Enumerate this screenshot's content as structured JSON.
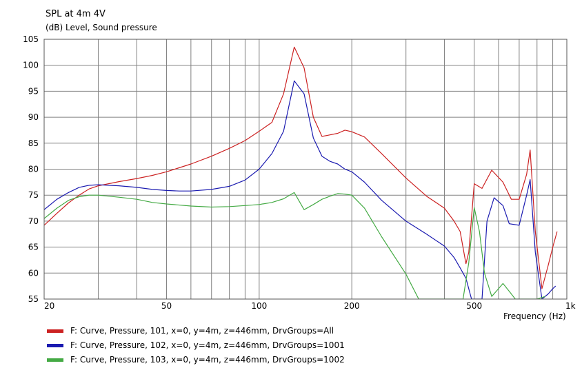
{
  "chart_data": {
    "type": "line",
    "title": "SPL at 4m 4V",
    "ylabel": "(dB)  Level, Sound pressure",
    "xlabel_text": "Frequency",
    "xlabel_unit": "(Hz)",
    "xscale": "log",
    "xlim": [
      20,
      1000
    ],
    "ylim": [
      55,
      105
    ],
    "grid": true,
    "legend_position": "bottom",
    "x_ticks": [
      {
        "value": 20,
        "label": "20"
      },
      {
        "value": 50,
        "label": "50"
      },
      {
        "value": 100,
        "label": "100"
      },
      {
        "value": 200,
        "label": "200"
      },
      {
        "value": 500,
        "label": "500"
      },
      {
        "value": 1000,
        "label": "1k"
      }
    ],
    "y_ticks": [
      55,
      60,
      65,
      70,
      75,
      80,
      85,
      90,
      95,
      100,
      105
    ],
    "series": [
      {
        "name": "F: Curve, Pressure, 101, x=0, y=4m, z=446mm, DrvGroups=All",
        "color": "#cc2222",
        "points": [
          [
            20,
            69.2
          ],
          [
            22,
            71.5
          ],
          [
            24,
            73.5
          ],
          [
            26,
            75
          ],
          [
            28,
            76.2
          ],
          [
            30,
            76.8
          ],
          [
            35,
            77.6
          ],
          [
            40,
            78.2
          ],
          [
            45,
            78.8
          ],
          [
            50,
            79.5
          ],
          [
            60,
            81
          ],
          [
            70,
            82.5
          ],
          [
            80,
            84
          ],
          [
            90,
            85.5
          ],
          [
            100,
            87.3
          ],
          [
            110,
            89
          ],
          [
            120,
            94.5
          ],
          [
            130,
            103.5
          ],
          [
            140,
            99.5
          ],
          [
            150,
            90
          ],
          [
            160,
            86.3
          ],
          [
            170,
            86.6
          ],
          [
            180,
            86.9
          ],
          [
            190,
            87.5
          ],
          [
            200,
            87.2
          ],
          [
            220,
            86.2
          ],
          [
            250,
            83
          ],
          [
            300,
            78.3
          ],
          [
            350,
            74.8
          ],
          [
            400,
            72.5
          ],
          [
            430,
            70
          ],
          [
            450,
            68
          ],
          [
            470,
            61.8
          ],
          [
            480,
            64
          ],
          [
            500,
            77.2
          ],
          [
            530,
            76.3
          ],
          [
            570,
            79.8
          ],
          [
            620,
            77.5
          ],
          [
            660,
            74.2
          ],
          [
            700,
            74.2
          ],
          [
            740,
            79
          ],
          [
            760,
            83.7
          ],
          [
            790,
            68
          ],
          [
            830,
            57
          ],
          [
            870,
            61.5
          ],
          [
            900,
            65
          ],
          [
            930,
            68
          ]
        ]
      },
      {
        "name": "F: Curve, Pressure, 102, x=0, y=4m, z=446mm, DrvGroups=1001",
        "color": "#1a1ab0",
        "points": [
          [
            20,
            72.2
          ],
          [
            22,
            74.2
          ],
          [
            24,
            75.5
          ],
          [
            26,
            76.5
          ],
          [
            28,
            76.9
          ],
          [
            30,
            77
          ],
          [
            35,
            76.8
          ],
          [
            40,
            76.5
          ],
          [
            45,
            76.1
          ],
          [
            50,
            75.9
          ],
          [
            55,
            75.8
          ],
          [
            60,
            75.8
          ],
          [
            70,
            76.1
          ],
          [
            80,
            76.7
          ],
          [
            90,
            77.9
          ],
          [
            100,
            80
          ],
          [
            110,
            83
          ],
          [
            120,
            87.3
          ],
          [
            130,
            97
          ],
          [
            140,
            94.5
          ],
          [
            150,
            86
          ],
          [
            160,
            82.5
          ],
          [
            170,
            81.5
          ],
          [
            180,
            81
          ],
          [
            190,
            80
          ],
          [
            200,
            79.5
          ],
          [
            220,
            77.5
          ],
          [
            250,
            74
          ],
          [
            300,
            70
          ],
          [
            350,
            67.5
          ],
          [
            400,
            65.2
          ],
          [
            430,
            63
          ],
          [
            450,
            61
          ],
          [
            470,
            59
          ],
          [
            490,
            55
          ],
          [
            530,
            55
          ],
          [
            550,
            70
          ],
          [
            580,
            74.5
          ],
          [
            620,
            73
          ],
          [
            650,
            69.5
          ],
          [
            700,
            69.2
          ],
          [
            740,
            75
          ],
          [
            760,
            78
          ],
          [
            790,
            64
          ],
          [
            830,
            55
          ],
          [
            870,
            56
          ],
          [
            900,
            57
          ],
          [
            920,
            57.5
          ]
        ]
      },
      {
        "name": "F: Curve, Pressure, 103, x=0, y=4m, z=446mm, DrvGroups=1002",
        "color": "#44aa44",
        "points": [
          [
            20,
            70.5
          ],
          [
            22,
            72.5
          ],
          [
            24,
            74
          ],
          [
            26,
            74.7
          ],
          [
            28,
            75
          ],
          [
            30,
            75
          ],
          [
            35,
            74.6
          ],
          [
            40,
            74.2
          ],
          [
            45,
            73.6
          ],
          [
            50,
            73.3
          ],
          [
            60,
            72.9
          ],
          [
            70,
            72.7
          ],
          [
            80,
            72.8
          ],
          [
            90,
            73
          ],
          [
            100,
            73.2
          ],
          [
            110,
            73.6
          ],
          [
            120,
            74.3
          ],
          [
            130,
            75.5
          ],
          [
            140,
            72.2
          ],
          [
            150,
            73.2
          ],
          [
            160,
            74.2
          ],
          [
            170,
            74.8
          ],
          [
            180,
            75.3
          ],
          [
            190,
            75.2
          ],
          [
            200,
            75
          ],
          [
            220,
            72.5
          ],
          [
            250,
            67
          ],
          [
            300,
            59.8
          ],
          [
            330,
            55
          ],
          [
            460,
            55
          ],
          [
            480,
            62
          ],
          [
            500,
            72.6
          ],
          [
            520,
            68
          ],
          [
            540,
            60
          ],
          [
            570,
            55.5
          ],
          [
            600,
            57
          ],
          [
            620,
            58
          ],
          [
            650,
            56.5
          ],
          [
            680,
            55
          ],
          [
            760,
            55
          ],
          [
            800,
            55
          ],
          [
            850,
            55.5
          ]
        ]
      }
    ]
  }
}
